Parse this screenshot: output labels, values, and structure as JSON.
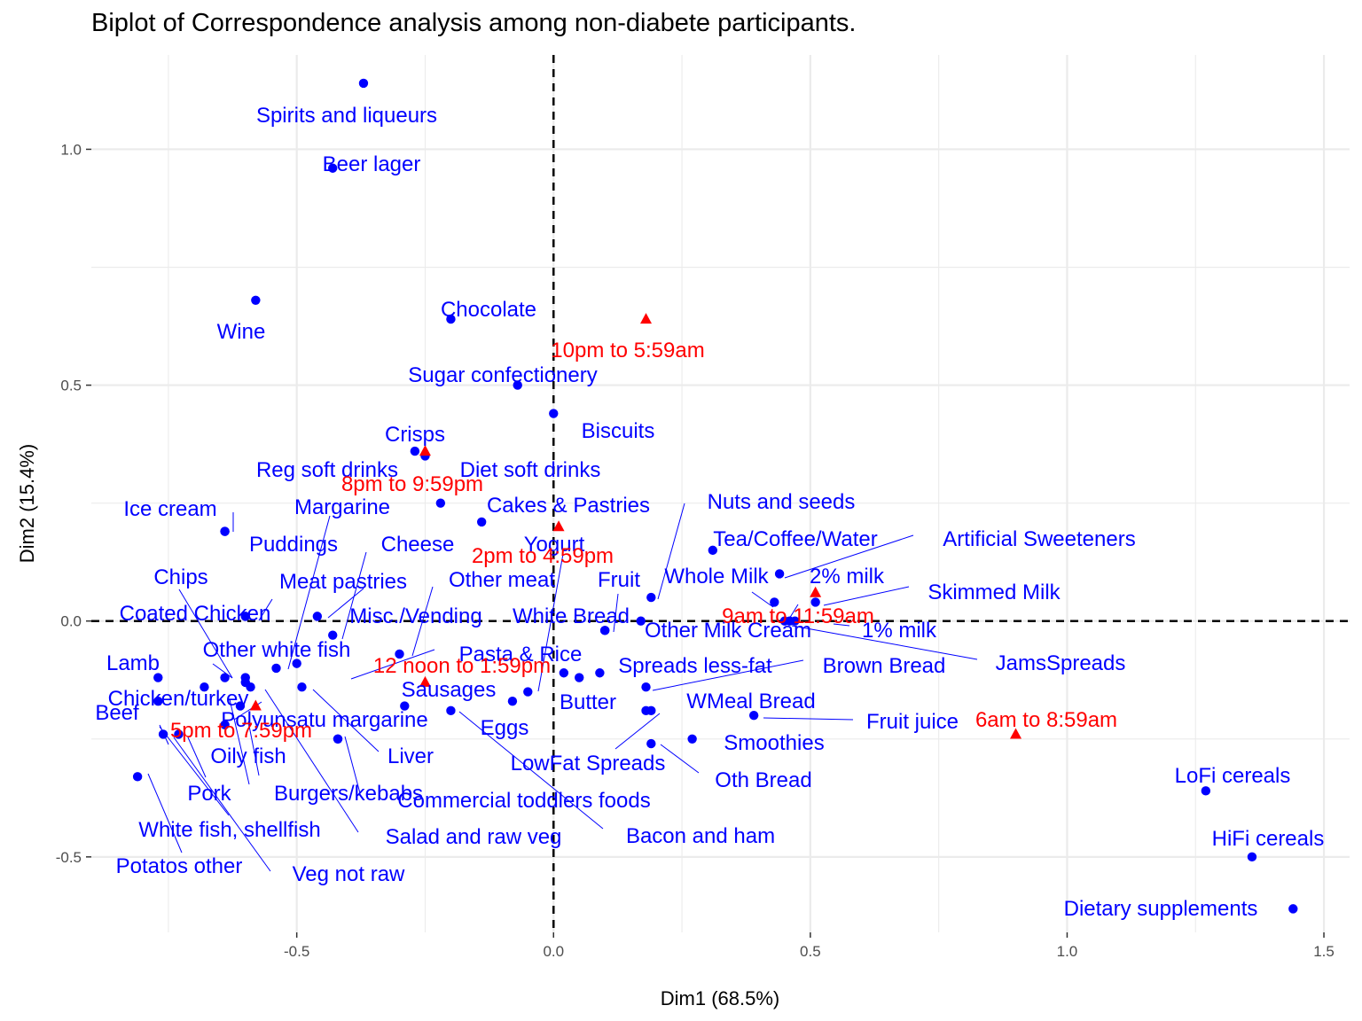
{
  "chart_data": {
    "type": "scatter",
    "title": "Biplot of Correspondence analysis among non-diabete participants.",
    "xlabel": "Dim1 (68.5%)",
    "ylabel": "Dim2 (15.4%)",
    "xlim": [
      -0.9,
      1.55
    ],
    "ylim": [
      -0.66,
      1.2
    ],
    "x_ticks": [
      -0.5,
      0.0,
      0.5,
      1.0,
      1.5
    ],
    "x_tick_labels": [
      "-0.5",
      "0.0",
      "0.5",
      "1.0",
      "1.5"
    ],
    "y_ticks": [
      -0.5,
      0.0,
      0.5,
      1.0
    ],
    "y_tick_labels": [
      "-0.5",
      "0.0",
      "0.5",
      "1.0"
    ],
    "grid": true,
    "colors": {
      "rows": "#0000ff",
      "columns": "#ff0000",
      "grid": "#ebebeb",
      "zero_lines": "#000000"
    },
    "rows": [
      {
        "label": "Spirits and liqueurs",
        "x": -0.37,
        "y": 1.14
      },
      {
        "label": "Beer lager",
        "x": -0.43,
        "y": 0.96
      },
      {
        "label": "Wine",
        "x": -0.58,
        "y": 0.68
      },
      {
        "label": "Chocolate",
        "x": -0.2,
        "y": 0.64
      },
      {
        "label": "Sugar confectionery",
        "x": -0.07,
        "y": 0.5
      },
      {
        "label": "Biscuits",
        "x": 0.0,
        "y": 0.44
      },
      {
        "label": "Crisps",
        "x": -0.27,
        "y": 0.36
      },
      {
        "label": "Diet soft drinks",
        "x": -0.25,
        "y": 0.35
      },
      {
        "label": "Cakes & Pastries",
        "x": -0.22,
        "y": 0.25
      },
      {
        "label": "Margarine",
        "x": -0.14,
        "y": 0.21
      },
      {
        "label": "Ice cream",
        "x": -0.64,
        "y": 0.19
      },
      {
        "label": "Reg soft drinks",
        "x": -0.64,
        "y": 0.19
      },
      {
        "label": "Puddings",
        "x": -0.6,
        "y": 0.01
      },
      {
        "label": "Meat pastries",
        "x": -0.46,
        "y": 0.01
      },
      {
        "label": "Cheese",
        "x": -0.43,
        "y": -0.03
      },
      {
        "label": "Other meat",
        "x": -0.3,
        "y": -0.07
      },
      {
        "label": "Nuts and seeds",
        "x": 0.19,
        "y": 0.05
      },
      {
        "label": "Tea/Coffee/Water",
        "x": 0.31,
        "y": 0.15
      },
      {
        "label": "Artificial Sweeteners",
        "x": 0.44,
        "y": 0.1
      },
      {
        "label": "Whole Milk",
        "x": 0.43,
        "y": 0.04
      },
      {
        "label": "2% milk",
        "x": 0.45,
        "y": 0.0
      },
      {
        "label": "Skimmed Milk",
        "x": 0.51,
        "y": 0.04
      },
      {
        "label": "1% milk",
        "x": 0.46,
        "y": 0.0
      },
      {
        "label": "JamsSpreads",
        "x": 0.47,
        "y": 0.0
      },
      {
        "label": "Fruit",
        "x": 0.1,
        "y": -0.02
      },
      {
        "label": "White Bread",
        "x": 0.17,
        "y": 0.0
      },
      {
        "label": "Other Milk Cream",
        "x": 0.1,
        "y": -0.02
      },
      {
        "label": "Yogurt",
        "x": -0.05,
        "y": -0.15
      },
      {
        "label": "Chips",
        "x": -0.64,
        "y": -0.12
      },
      {
        "label": "Coated Chicken",
        "x": -0.6,
        "y": -0.12
      },
      {
        "label": "Other white fish",
        "x": -0.54,
        "y": -0.1
      },
      {
        "label": "Misc./Vending",
        "x": -0.5,
        "y": -0.09
      },
      {
        "label": "Pasta & Rice",
        "x": 0.02,
        "y": -0.11
      },
      {
        "label": "Spreads less-fat",
        "x": 0.09,
        "y": -0.11
      },
      {
        "label": "Brown Bread",
        "x": 0.18,
        "y": -0.14
      },
      {
        "label": "Butter",
        "x": 0.05,
        "y": -0.12
      },
      {
        "label": "WMeal Bread",
        "x": 0.19,
        "y": -0.19
      },
      {
        "label": "Fruit juice",
        "x": 0.39,
        "y": -0.2
      },
      {
        "label": "Smoothies",
        "x": 0.27,
        "y": -0.25
      },
      {
        "label": "Oth Bread",
        "x": 0.19,
        "y": -0.26
      },
      {
        "label": "LowFat Spreads",
        "x": 0.18,
        "y": -0.19
      },
      {
        "label": "Sausages",
        "x": -0.08,
        "y": -0.17
      },
      {
        "label": "Eggs",
        "x": -0.2,
        "y": -0.19
      },
      {
        "label": "Bacon and ham",
        "x": -0.29,
        "y": -0.18
      },
      {
        "label": "Liver",
        "x": -0.49,
        "y": -0.14
      },
      {
        "label": "Polyunsatu margarine",
        "x": -0.42,
        "y": -0.25
      },
      {
        "label": "Commercial toddlers foods",
        "x": -0.42,
        "y": -0.25
      },
      {
        "label": "Salad and raw veg",
        "x": -0.59,
        "y": -0.14
      },
      {
        "label": "Lamb",
        "x": -0.77,
        "y": -0.12
      },
      {
        "label": "Chicken/turkey",
        "x": -0.68,
        "y": -0.14
      },
      {
        "label": "Beef",
        "x": -0.77,
        "y": -0.17
      },
      {
        "label": "Oily fish",
        "x": -0.6,
        "y": -0.13
      },
      {
        "label": "Burgers/kebabs",
        "x": -0.61,
        "y": -0.18
      },
      {
        "label": "Pork",
        "x": -0.73,
        "y": -0.24
      },
      {
        "label": "White fish, shellfish",
        "x": -0.76,
        "y": -0.24
      },
      {
        "label": "Potatos other",
        "x": -0.81,
        "y": -0.33
      },
      {
        "label": "Veg not raw",
        "x": -0.64,
        "y": -0.22
      },
      {
        "label": "LoFi cereals",
        "x": 1.27,
        "y": -0.36
      },
      {
        "label": "HiFi cereals",
        "x": 1.36,
        "y": -0.5
      },
      {
        "label": "Dietary supplements",
        "x": 1.44,
        "y": -0.61
      }
    ],
    "columns": [
      {
        "label": "10pm to 5:59am",
        "x": 0.18,
        "y": 0.64
      },
      {
        "label": "8pm to 9:59pm",
        "x": -0.25,
        "y": 0.36
      },
      {
        "label": "2pm to 4:59pm",
        "x": 0.01,
        "y": 0.2
      },
      {
        "label": "9am to 11:59am",
        "x": 0.51,
        "y": 0.06
      },
      {
        "label": "12 noon to 1:59pm",
        "x": -0.25,
        "y": -0.13
      },
      {
        "label": "5pm to 7:59pm",
        "x": -0.58,
        "y": -0.18
      },
      {
        "label": "6am to 8:59am",
        "x": 0.9,
        "y": -0.24
      }
    ]
  }
}
